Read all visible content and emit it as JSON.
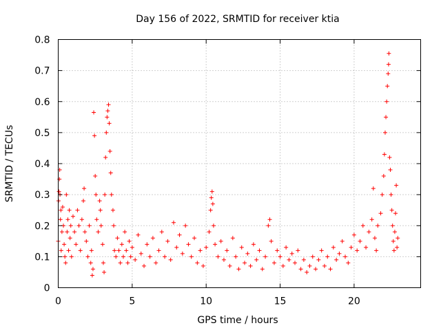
{
  "chart_data": {
    "type": "scatter",
    "title": "Day 156 of 2022, SRMTID for receiver ktia",
    "xlabel": "GPS time / hours",
    "ylabel": "SRMTID / TECUs",
    "xlim": [
      0,
      24.5
    ],
    "ylim": [
      0,
      0.8
    ],
    "xticks": [
      0,
      5,
      10,
      15,
      20
    ],
    "xtick_labels": [
      "0",
      "5",
      "10",
      "15",
      "20"
    ],
    "yticks": [
      0,
      0.1,
      0.2,
      0.3,
      0.4,
      0.5,
      0.6,
      0.7,
      0.8
    ],
    "ytick_labels": [
      "0",
      "0.1",
      "0.2",
      "0.3",
      "0.4",
      "0.5",
      "0.6",
      "0.7",
      "0.8"
    ],
    "grid": true,
    "marker": "+",
    "color": "#ff0000",
    "series": [
      {
        "name": "SRMTID",
        "points": [
          [
            0.0,
            0.15
          ],
          [
            0.02,
            0.28
          ],
          [
            0.05,
            0.31
          ],
          [
            0.08,
            0.35
          ],
          [
            0.1,
            0.38
          ],
          [
            0.12,
            0.3
          ],
          [
            0.15,
            0.22
          ],
          [
            0.18,
            0.25
          ],
          [
            0.2,
            0.12
          ],
          [
            0.25,
            0.18
          ],
          [
            0.3,
            0.26
          ],
          [
            0.35,
            0.2
          ],
          [
            0.4,
            0.14
          ],
          [
            0.45,
            0.1
          ],
          [
            0.5,
            0.08
          ],
          [
            0.55,
            0.3
          ],
          [
            0.6,
            0.18
          ],
          [
            0.65,
            0.22
          ],
          [
            0.7,
            0.12
          ],
          [
            0.75,
            0.25
          ],
          [
            0.8,
            0.16
          ],
          [
            0.85,
            0.2
          ],
          [
            0.9,
            0.1
          ],
          [
            1.0,
            0.23
          ],
          [
            1.1,
            0.18
          ],
          [
            1.2,
            0.14
          ],
          [
            1.3,
            0.25
          ],
          [
            1.4,
            0.2
          ],
          [
            1.5,
            0.12
          ],
          [
            1.6,
            0.22
          ],
          [
            1.7,
            0.28
          ],
          [
            1.75,
            0.32
          ],
          [
            1.8,
            0.18
          ],
          [
            1.9,
            0.15
          ],
          [
            2.0,
            0.1
          ],
          [
            2.1,
            0.2
          ],
          [
            2.2,
            0.08
          ],
          [
            2.25,
            0.12
          ],
          [
            2.3,
            0.04
          ],
          [
            2.35,
            0.06
          ],
          [
            2.4,
            0.565
          ],
          [
            2.45,
            0.49
          ],
          [
            2.5,
            0.36
          ],
          [
            2.55,
            0.3
          ],
          [
            2.6,
            0.22
          ],
          [
            2.7,
            0.18
          ],
          [
            2.8,
            0.28
          ],
          [
            2.85,
            0.25
          ],
          [
            2.9,
            0.2
          ],
          [
            3.0,
            0.14
          ],
          [
            3.05,
            0.08
          ],
          [
            3.1,
            0.05
          ],
          [
            3.15,
            0.3
          ],
          [
            3.2,
            0.42
          ],
          [
            3.25,
            0.5
          ],
          [
            3.3,
            0.55
          ],
          [
            3.35,
            0.57
          ],
          [
            3.4,
            0.59
          ],
          [
            3.45,
            0.53
          ],
          [
            3.5,
            0.44
          ],
          [
            3.55,
            0.37
          ],
          [
            3.6,
            0.3
          ],
          [
            3.7,
            0.25
          ],
          [
            3.75,
            0.2
          ],
          [
            3.8,
            0.12
          ],
          [
            3.9,
            0.1
          ],
          [
            4.0,
            0.16
          ],
          [
            4.1,
            0.12
          ],
          [
            4.2,
            0.08
          ],
          [
            4.3,
            0.14
          ],
          [
            4.4,
            0.1
          ],
          [
            4.5,
            0.18
          ],
          [
            4.6,
            0.12
          ],
          [
            4.7,
            0.08
          ],
          [
            4.8,
            0.15
          ],
          [
            4.9,
            0.1
          ],
          [
            5.0,
            0.13
          ],
          [
            5.2,
            0.09
          ],
          [
            5.4,
            0.17
          ],
          [
            5.6,
            0.11
          ],
          [
            5.8,
            0.07
          ],
          [
            6.0,
            0.14
          ],
          [
            6.2,
            0.1
          ],
          [
            6.4,
            0.16
          ],
          [
            6.6,
            0.08
          ],
          [
            6.8,
            0.12
          ],
          [
            7.0,
            0.18
          ],
          [
            7.2,
            0.1
          ],
          [
            7.4,
            0.15
          ],
          [
            7.6,
            0.09
          ],
          [
            7.8,
            0.21
          ],
          [
            8.0,
            0.13
          ],
          [
            8.2,
            0.17
          ],
          [
            8.4,
            0.11
          ],
          [
            8.6,
            0.2
          ],
          [
            8.8,
            0.14
          ],
          [
            9.0,
            0.1
          ],
          [
            9.2,
            0.16
          ],
          [
            9.4,
            0.08
          ],
          [
            9.6,
            0.12
          ],
          [
            9.8,
            0.07
          ],
          [
            10.0,
            0.13
          ],
          [
            10.2,
            0.18
          ],
          [
            10.3,
            0.25
          ],
          [
            10.35,
            0.29
          ],
          [
            10.4,
            0.31
          ],
          [
            10.45,
            0.27
          ],
          [
            10.5,
            0.2
          ],
          [
            10.6,
            0.14
          ],
          [
            10.8,
            0.1
          ],
          [
            11.0,
            0.15
          ],
          [
            11.2,
            0.09
          ],
          [
            11.4,
            0.12
          ],
          [
            11.6,
            0.07
          ],
          [
            11.8,
            0.16
          ],
          [
            12.0,
            0.1
          ],
          [
            12.2,
            0.06
          ],
          [
            12.4,
            0.13
          ],
          [
            12.6,
            0.08
          ],
          [
            12.8,
            0.11
          ],
          [
            13.0,
            0.07
          ],
          [
            13.2,
            0.14
          ],
          [
            13.4,
            0.09
          ],
          [
            13.6,
            0.12
          ],
          [
            13.8,
            0.06
          ],
          [
            14.0,
            0.1
          ],
          [
            14.2,
            0.2
          ],
          [
            14.3,
            0.22
          ],
          [
            14.4,
            0.15
          ],
          [
            14.6,
            0.08
          ],
          [
            14.8,
            0.12
          ],
          [
            15.0,
            0.1
          ],
          [
            15.2,
            0.07
          ],
          [
            15.4,
            0.13
          ],
          [
            15.6,
            0.09
          ],
          [
            15.8,
            0.11
          ],
          [
            16.0,
            0.08
          ],
          [
            16.2,
            0.12
          ],
          [
            16.4,
            0.06
          ],
          [
            16.6,
            0.09
          ],
          [
            16.8,
            0.05
          ],
          [
            17.0,
            0.07
          ],
          [
            17.2,
            0.1
          ],
          [
            17.4,
            0.06
          ],
          [
            17.6,
            0.09
          ],
          [
            17.8,
            0.12
          ],
          [
            18.0,
            0.07
          ],
          [
            18.2,
            0.1
          ],
          [
            18.4,
            0.06
          ],
          [
            18.6,
            0.13
          ],
          [
            18.8,
            0.09
          ],
          [
            19.0,
            0.11
          ],
          [
            19.2,
            0.15
          ],
          [
            19.4,
            0.1
          ],
          [
            19.6,
            0.08
          ],
          [
            19.8,
            0.13
          ],
          [
            20.0,
            0.17
          ],
          [
            20.2,
            0.12
          ],
          [
            20.4,
            0.15
          ],
          [
            20.6,
            0.2
          ],
          [
            20.8,
            0.13
          ],
          [
            21.0,
            0.18
          ],
          [
            21.2,
            0.22
          ],
          [
            21.3,
            0.32
          ],
          [
            21.4,
            0.16
          ],
          [
            21.5,
            0.12
          ],
          [
            21.6,
            0.2
          ],
          [
            21.8,
            0.24
          ],
          [
            21.9,
            0.3
          ],
          [
            22.0,
            0.36
          ],
          [
            22.05,
            0.43
          ],
          [
            22.1,
            0.5
          ],
          [
            22.15,
            0.55
          ],
          [
            22.2,
            0.6
          ],
          [
            22.25,
            0.65
          ],
          [
            22.3,
            0.69
          ],
          [
            22.33,
            0.72
          ],
          [
            22.35,
            0.755
          ],
          [
            22.4,
            0.42
          ],
          [
            22.45,
            0.38
          ],
          [
            22.5,
            0.3
          ],
          [
            22.55,
            0.25
          ],
          [
            22.6,
            0.2
          ],
          [
            22.65,
            0.15
          ],
          [
            22.7,
            0.12
          ],
          [
            22.75,
            0.18
          ],
          [
            22.8,
            0.24
          ],
          [
            22.85,
            0.33
          ],
          [
            22.9,
            0.13
          ],
          [
            22.95,
            0.16
          ]
        ]
      }
    ]
  }
}
